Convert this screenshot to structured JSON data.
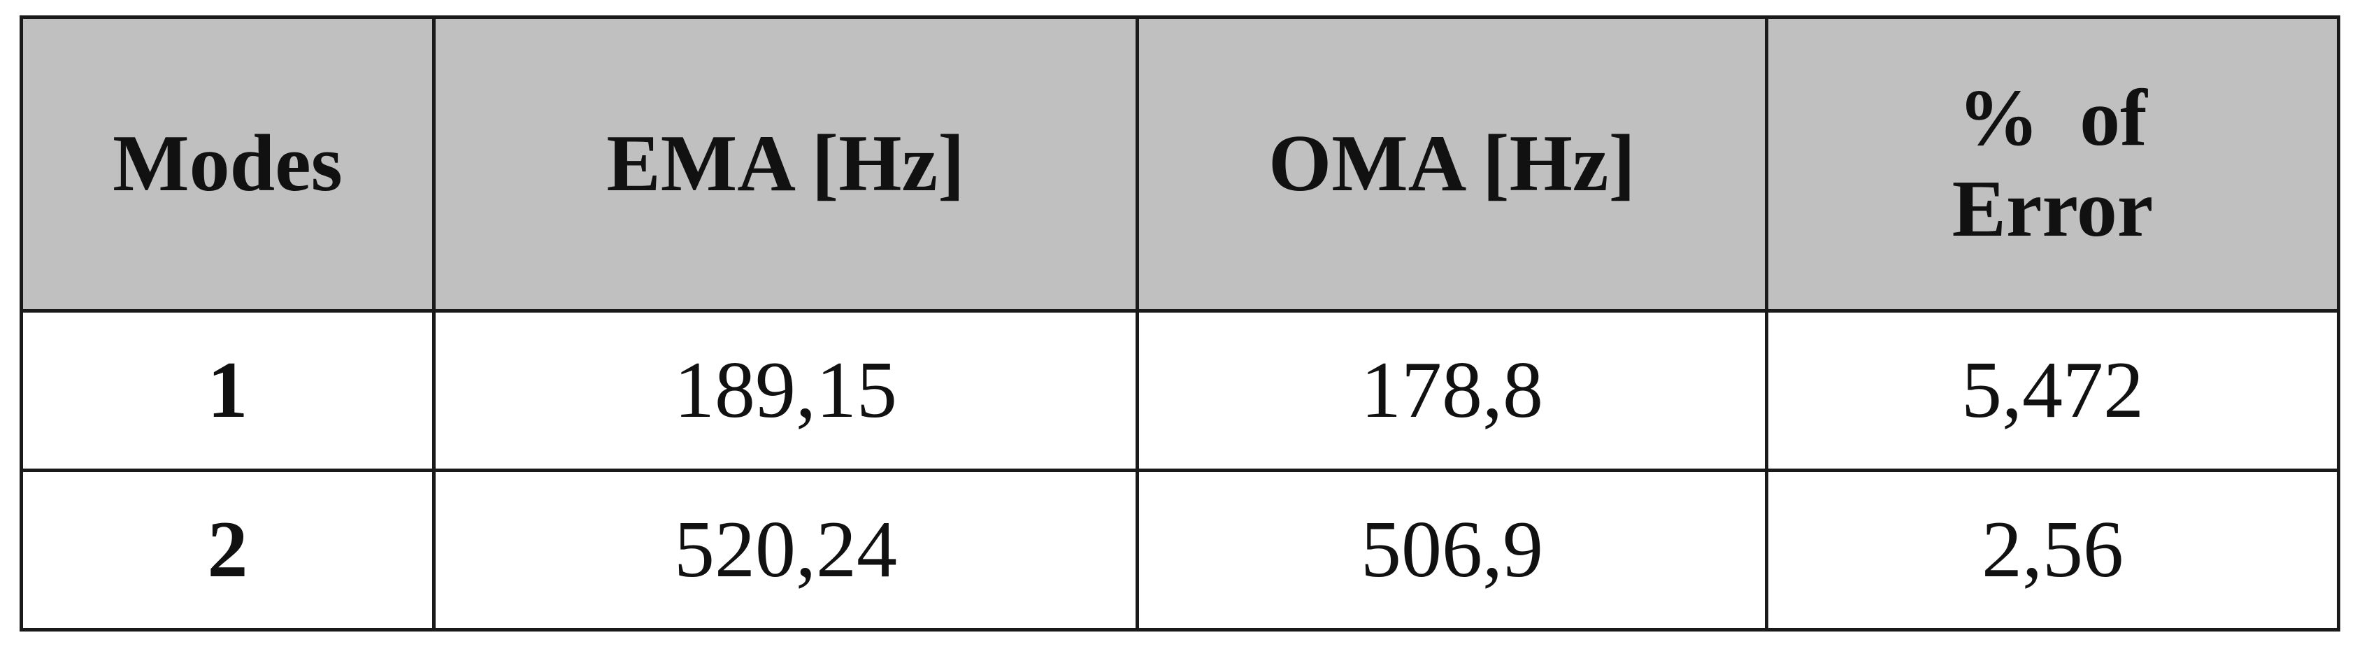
{
  "table": {
    "headers": {
      "modes": "Modes",
      "ema": "EMA [Hz]",
      "oma": "OMA [Hz]",
      "error_line1": "%  of",
      "error_line2": "Error"
    },
    "rows": [
      {
        "mode": "1",
        "ema": "189,15",
        "oma": "178,8",
        "error": "5,472"
      },
      {
        "mode": "2",
        "ema": "520,24",
        "oma": "506,9",
        "error": "2,56"
      }
    ]
  }
}
